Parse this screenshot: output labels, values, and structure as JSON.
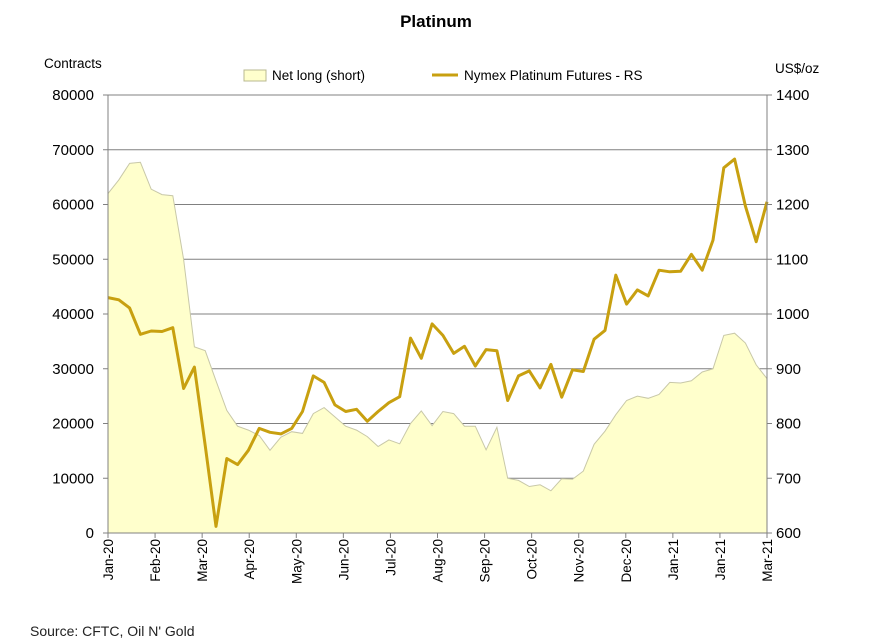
{
  "chart_data": {
    "type": "area+line",
    "title": "Platinum",
    "left_axis_label": "Contracts",
    "right_axis_label": "US$/oz",
    "source": "Source: CFTC, Oil N' Gold",
    "y_left": {
      "min": 0,
      "max": 80000,
      "step": 10000,
      "ticks": [
        "0",
        "10000",
        "20000",
        "30000",
        "40000",
        "50000",
        "60000",
        "70000",
        "80000"
      ]
    },
    "y_right": {
      "min": 600,
      "max": 1400,
      "step": 100,
      "ticks": [
        "600",
        "700",
        "800",
        "900",
        "1000",
        "1100",
        "1200",
        "1300",
        "1400"
      ]
    },
    "x_ticks": [
      "Jan-20",
      "Feb-20",
      "Mar-20",
      "Apr-20",
      "May-20",
      "Jun-20",
      "Jul-20",
      "Aug-20",
      "Sep-20",
      "Oct-20",
      "Nov-20",
      "Dec-20",
      "Jan-21",
      "Jan-21",
      "Mar-21"
    ],
    "grid": true,
    "legend_position": "top",
    "colors": {
      "area_fill": "#ffffcc",
      "area_stroke": "#c8c8a8",
      "line": "#c8a010",
      "grid": "#808080"
    },
    "series": [
      {
        "name": "Net long (short)",
        "kind": "area",
        "axis": "left",
        "values": [
          62000,
          64500,
          67500,
          67700,
          62800,
          61800,
          61600,
          50000,
          34000,
          33300,
          27800,
          22400,
          19500,
          18800,
          17800,
          15100,
          17500,
          18500,
          18200,
          21800,
          22900,
          21200,
          19500,
          18800,
          17600,
          15800,
          17000,
          16300,
          20000,
          22300,
          19600,
          22200,
          21800,
          19500,
          19500,
          15200,
          19300,
          10000,
          9600,
          8500,
          8800,
          7700,
          9900,
          9800,
          11300,
          16200,
          18600,
          21600,
          24200,
          25000,
          24600,
          25300,
          27500,
          27400,
          27800,
          29400,
          30000,
          36100,
          36500,
          34700,
          30700,
          28200
        ]
      },
      {
        "name": "Nymex Platinum Futures - RS",
        "kind": "line",
        "axis": "right",
        "values": [
          1030,
          1026,
          1011,
          963,
          969,
          968,
          975,
          864,
          903,
          760,
          612,
          736,
          725,
          751,
          791,
          784,
          781,
          791,
          822,
          887,
          875,
          834,
          822,
          826,
          804,
          822,
          838,
          849,
          956,
          919,
          982,
          961,
          928,
          941,
          905,
          935,
          933,
          842,
          887,
          896,
          865,
          908,
          848,
          898,
          895,
          954,
          970,
          1071,
          1018,
          1044,
          1033,
          1080,
          1077,
          1078,
          1109,
          1080,
          1135,
          1267,
          1283,
          1197,
          1132,
          1205
        ]
      }
    ]
  }
}
